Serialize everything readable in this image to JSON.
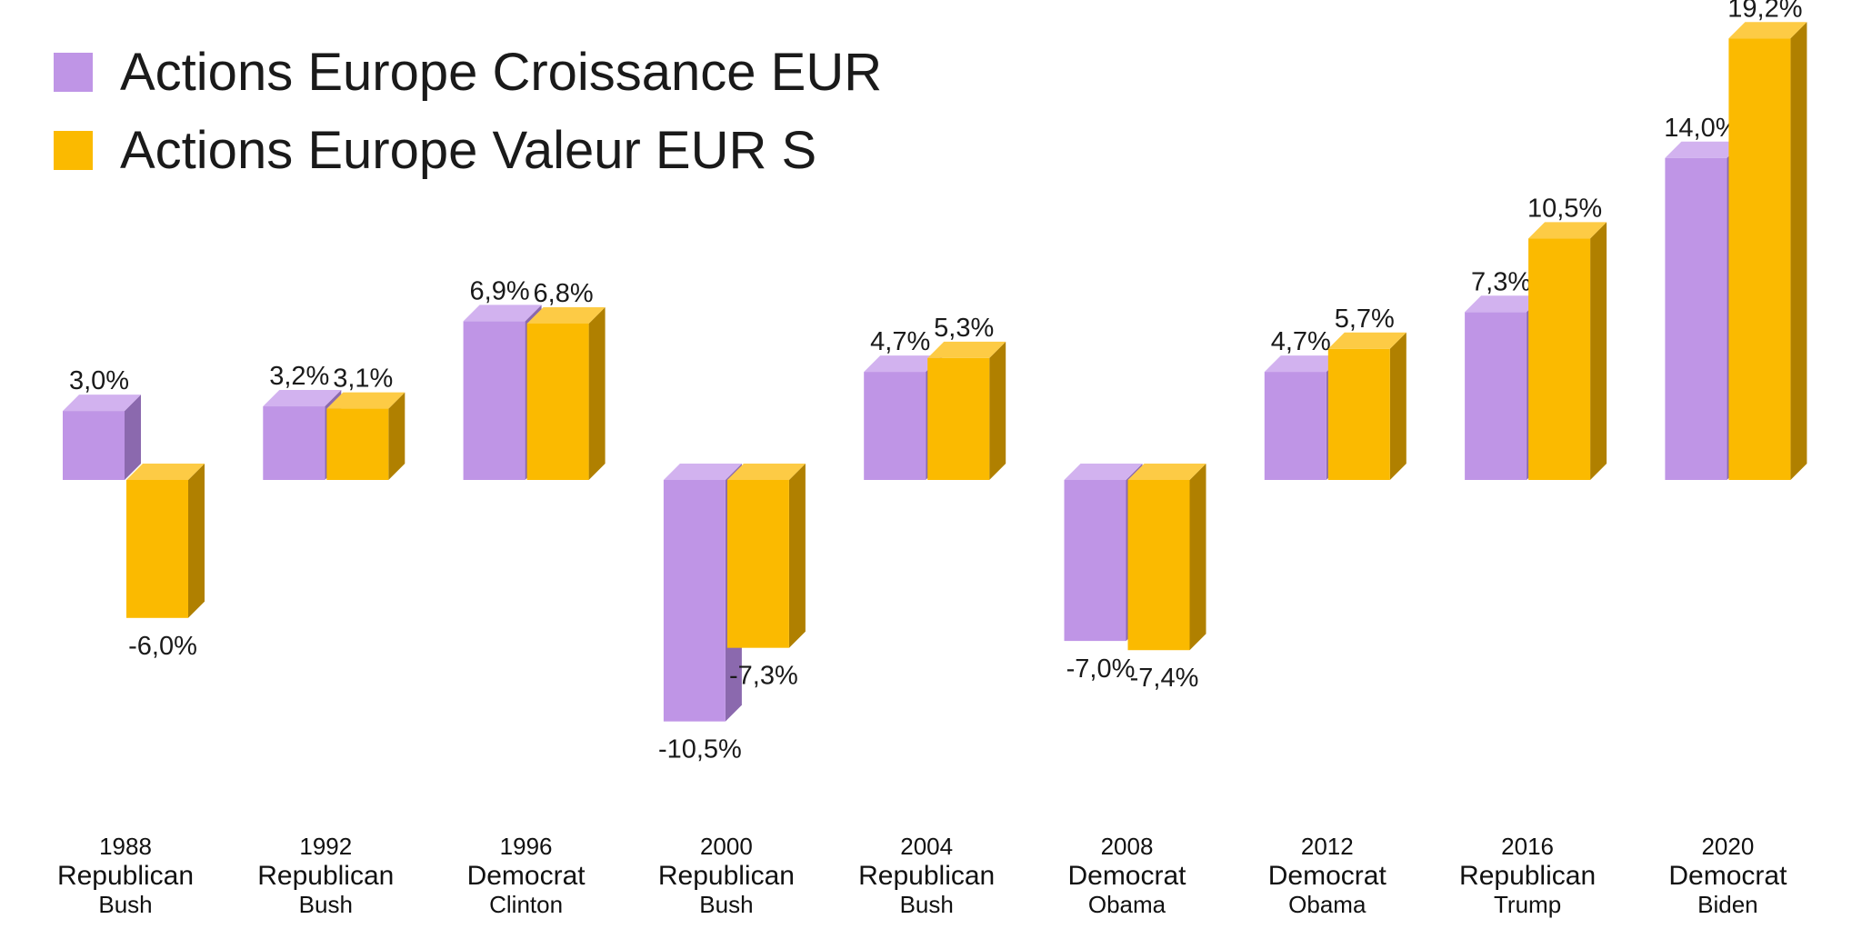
{
  "chart_data": {
    "type": "bar",
    "style": "3d-grouped",
    "categories": [
      {
        "year": "1988",
        "party": "Republican",
        "name": "Bush"
      },
      {
        "year": "1992",
        "party": "Republican",
        "name": "Bush"
      },
      {
        "year": "1996",
        "party": "Democrat",
        "name": "Clinton"
      },
      {
        "year": "2000",
        "party": "Republican",
        "name": "Bush"
      },
      {
        "year": "2004",
        "party": "Republican",
        "name": "Bush"
      },
      {
        "year": "2008",
        "party": "Democrat",
        "name": "Obama"
      },
      {
        "year": "2012",
        "party": "Democrat",
        "name": "Obama"
      },
      {
        "year": "2016",
        "party": "Republican",
        "name": "Trump"
      },
      {
        "year": "2020",
        "party": "Democrat",
        "name": "Biden"
      }
    ],
    "series": [
      {
        "name": "Actions Europe Croissance EUR",
        "color": "#BF95E6",
        "side": "#8B69AE",
        "top": "#D2B2EF",
        "values": [
          3.0,
          3.2,
          6.9,
          -10.5,
          4.7,
          -7.0,
          4.7,
          7.3,
          14.0
        ],
        "labels": [
          "3,0%",
          "3,2%",
          "6,9%",
          "-10,5%",
          "4,7%",
          "-7,0%",
          "4,7%",
          "7,3%",
          "14,0%"
        ]
      },
      {
        "name": "Actions Europe Valeur EUR S",
        "color": "#FBBA00",
        "side": "#B08000",
        "top": "#FDCB45",
        "values": [
          -6.0,
          3.1,
          6.8,
          -7.3,
          5.3,
          -7.4,
          5.7,
          10.5,
          19.2
        ],
        "labels": [
          "-6,0%",
          "3,1%",
          "6,8%",
          "-7,3%",
          "5,3%",
          "-7,4%",
          "5,7%",
          "10,5%",
          "19,2%"
        ]
      }
    ],
    "legend_position": "top-left",
    "grid": false,
    "unit": "%"
  }
}
